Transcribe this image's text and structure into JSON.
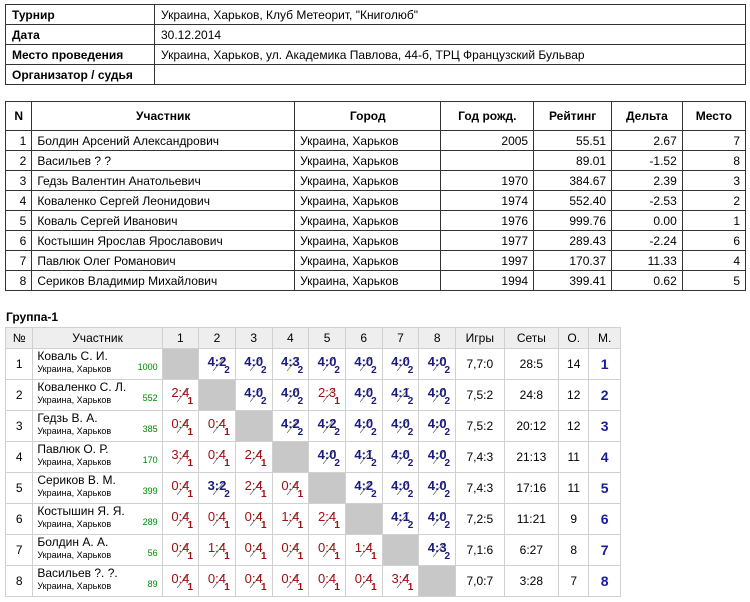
{
  "info": [
    {
      "label": "Турнир",
      "value": "Украина, Харьков, Клуб Метеорит, \"Книголюб\""
    },
    {
      "label": "Дата",
      "value": "30.12.2014"
    },
    {
      "label": "Место проведения",
      "value": "Украина, Харьков, ул. Академика Павлова, 44-б, ТРЦ Французский Бульвар"
    },
    {
      "label": "Организатор / судья"
    }
  ],
  "players": {
    "headers": [
      "N",
      "Участник",
      "Город",
      "Год рожд.",
      "Рейтинг",
      "Дельта",
      "Место"
    ],
    "rows": [
      [
        1,
        "Болдин Арсений Александрович",
        "Украина, Харьков",
        2005,
        "55.51",
        "2.67",
        7
      ],
      [
        2,
        "Васильев ? ?",
        "Украина, Харьков",
        null,
        "89.01",
        "-1.52",
        8
      ],
      [
        3,
        "Гедзь Валентин Анатольевич",
        "Украина, Харьков",
        1970,
        "384.67",
        "2.39",
        3
      ],
      [
        4,
        "Коваленко Сергей Леонидович",
        "Украина, Харьков",
        1974,
        "552.40",
        "-2.53",
        2
      ],
      [
        5,
        "Коваль Сергей Иванович",
        "Украина, Харьков",
        1976,
        "999.76",
        "0.00",
        1
      ],
      [
        6,
        "Костышин Ярослав Ярославович",
        "Украина, Харьков",
        1977,
        "289.43",
        "-2.24",
        6
      ],
      [
        7,
        "Павлюк Олег Романович",
        "Украина, Харьков",
        1997,
        "170.37",
        "11.33",
        4
      ],
      [
        8,
        "Сериков Владимир Михайлович",
        "Украина, Харьков",
        1994,
        "399.41",
        "0.62",
        5
      ]
    ]
  },
  "group": {
    "title": "Группа-1",
    "headers": [
      "№",
      "Участник",
      "1",
      "2",
      "3",
      "4",
      "5",
      "6",
      "7",
      "8",
      "Игры",
      "Сеты",
      "О.",
      "М."
    ],
    "rows": [
      {
        "num": 1,
        "name": "Коваль С. И.",
        "city": "Украина, Харьков",
        "rating": 1000,
        "cells": [
          null,
          {
            "score": "4:2",
            "sub": 2
          },
          {
            "score": "4:0",
            "sub": 2
          },
          {
            "score": "4:3",
            "sub": 2
          },
          {
            "score": "4:0",
            "sub": 2
          },
          {
            "score": "4:0",
            "sub": 2
          },
          {
            "score": "4:0",
            "sub": 2
          },
          {
            "score": "4:0",
            "sub": 2
          }
        ],
        "games": "7,7:0",
        "sets": "28:5",
        "points": 14,
        "place": 1
      },
      {
        "num": 2,
        "name": "Коваленко С. Л.",
        "city": "Украина, Харьков",
        "rating": 552,
        "cells": [
          {
            "score": "2:4",
            "sub": 1
          },
          null,
          {
            "score": "4:0",
            "sub": 2
          },
          {
            "score": "4:0",
            "sub": 2
          },
          {
            "score": "2:3",
            "sub": 1
          },
          {
            "score": "4:0",
            "sub": 2
          },
          {
            "score": "4:1",
            "sub": 2
          },
          {
            "score": "4:0",
            "sub": 2
          }
        ],
        "games": "7,5:2",
        "sets": "24:8",
        "points": 12,
        "place": 2
      },
      {
        "num": 3,
        "name": "Гедзь В. А.",
        "city": "Украина, Харьков",
        "rating": 385,
        "cells": [
          {
            "score": "0:4",
            "sub": 1
          },
          {
            "score": "0:4",
            "sub": 1
          },
          null,
          {
            "score": "4:2",
            "sub": 2
          },
          {
            "score": "4:2",
            "sub": 2
          },
          {
            "score": "4:0",
            "sub": 2
          },
          {
            "score": "4:0",
            "sub": 2
          },
          {
            "score": "4:0",
            "sub": 2
          }
        ],
        "games": "7,5:2",
        "sets": "20:12",
        "points": 12,
        "place": 3
      },
      {
        "num": 4,
        "name": "Павлюк О. Р.",
        "city": "Украина, Харьков",
        "rating": 170,
        "cells": [
          {
            "score": "3:4",
            "sub": 1
          },
          {
            "score": "0:4",
            "sub": 1
          },
          {
            "score": "2:4",
            "sub": 1
          },
          null,
          {
            "score": "4:0",
            "sub": 2
          },
          {
            "score": "4:1",
            "sub": 2
          },
          {
            "score": "4:0",
            "sub": 2
          },
          {
            "score": "4:0",
            "sub": 2
          }
        ],
        "games": "7,4:3",
        "sets": "21:13",
        "points": 11,
        "place": 4
      },
      {
        "num": 5,
        "name": "Сериков В. М.",
        "city": "Украина, Харьков",
        "rating": 399,
        "cells": [
          {
            "score": "0:4",
            "sub": 1
          },
          {
            "score": "3:2",
            "sub": 2
          },
          {
            "score": "2:4",
            "sub": 1
          },
          {
            "score": "0:4",
            "sub": 1
          },
          null,
          {
            "score": "4:2",
            "sub": 2
          },
          {
            "score": "4:0",
            "sub": 2
          },
          {
            "score": "4:0",
            "sub": 2
          }
        ],
        "games": "7,4:3",
        "sets": "17:16",
        "points": 11,
        "place": 5
      },
      {
        "num": 6,
        "name": "Костышин Я. Я.",
        "city": "Украина, Харьков",
        "rating": 289,
        "cells": [
          {
            "score": "0:4",
            "sub": 1
          },
          {
            "score": "0:4",
            "sub": 1
          },
          {
            "score": "0:4",
            "sub": 1
          },
          {
            "score": "1:4",
            "sub": 1
          },
          {
            "score": "2:4",
            "sub": 1
          },
          null,
          {
            "score": "4:1",
            "sub": 2
          },
          {
            "score": "4:0",
            "sub": 2
          }
        ],
        "games": "7,2:5",
        "sets": "11:21",
        "points": 9,
        "place": 6
      },
      {
        "num": 7,
        "name": "Болдин А. А.",
        "city": "Украина, Харьков",
        "rating": 56,
        "cells": [
          {
            "score": "0:4",
            "sub": 1
          },
          {
            "score": "1:4",
            "sub": 1
          },
          {
            "score": "0:4",
            "sub": 1
          },
          {
            "score": "0:4",
            "sub": 1
          },
          {
            "score": "0:4",
            "sub": 1
          },
          {
            "score": "1:4",
            "sub": 1
          },
          null,
          {
            "score": "4:3",
            "sub": 2
          }
        ],
        "games": "7,1:6",
        "sets": "6:27",
        "points": 8,
        "place": 7
      },
      {
        "num": 8,
        "name": "Васильев ?. ?.",
        "city": "Украина, Харьков",
        "rating": 89,
        "cells": [
          {
            "score": "0:4",
            "sub": 1
          },
          {
            "score": "0:4",
            "sub": 1
          },
          {
            "score": "0:4",
            "sub": 1
          },
          {
            "score": "0:4",
            "sub": 1
          },
          {
            "score": "0:4",
            "sub": 1
          },
          {
            "score": "0:4",
            "sub": 1
          },
          {
            "score": "3:4",
            "sub": 1
          },
          null
        ],
        "games": "7,0:7",
        "sets": "3:28",
        "points": 7,
        "place": 8
      }
    ]
  }
}
